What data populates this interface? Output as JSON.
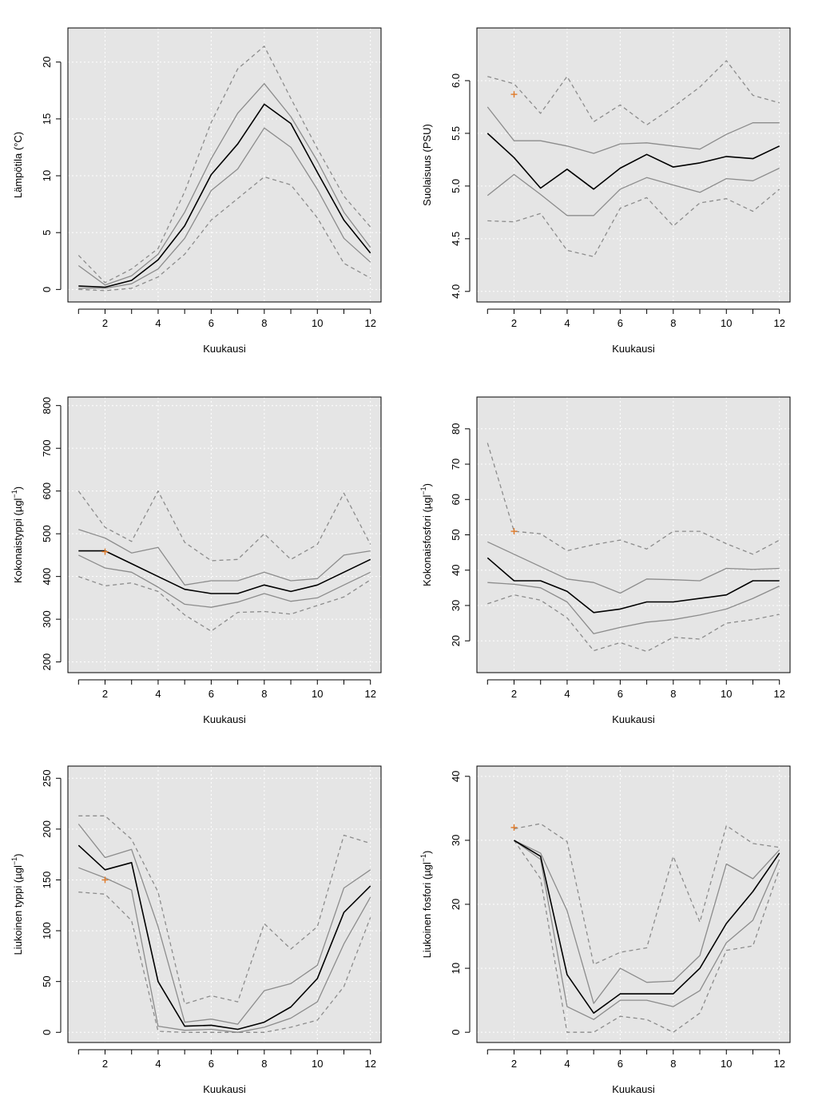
{
  "colors": {
    "panel_bg": "#e5e5e5",
    "grid": "#ffffff",
    "median": "#000000",
    "quartile": "#8c8c8c",
    "extreme": "#8c8c8c",
    "marker": "#e07b2a"
  },
  "chart_data": [
    {
      "type": "line",
      "ylabel": "Lämpötila (°C)",
      "xlabel": "Kuukausi",
      "xlim": [
        0.6,
        12.4
      ],
      "ylim": [
        -1.1,
        23.0
      ],
      "xticks": [
        2,
        4,
        6,
        8,
        10,
        12
      ],
      "yticks": [
        0,
        5,
        10,
        15,
        20
      ],
      "ytick_labels": [
        "0",
        "5",
        "10",
        "15",
        "20"
      ],
      "grid": true,
      "x": [
        1,
        2,
        3,
        4,
        5,
        6,
        7,
        8,
        9,
        10,
        11,
        12
      ],
      "series": [
        {
          "role": "median",
          "values": [
            0.3,
            0.2,
            0.8,
            2.6,
            5.6,
            10.1,
            12.8,
            16.3,
            14.6,
            10.3,
            6.1,
            3.2
          ]
        },
        {
          "role": "upper-quartile",
          "values": [
            2.1,
            0.4,
            1.2,
            3.1,
            6.8,
            11.5,
            15.5,
            18.1,
            15.2,
            11.3,
            6.8,
            3.7
          ]
        },
        {
          "role": "lower-quartile",
          "values": [
            0.1,
            0.1,
            0.5,
            1.8,
            4.5,
            8.7,
            10.6,
            14.2,
            12.5,
            8.8,
            4.5,
            2.4
          ]
        },
        {
          "role": "upper-extreme",
          "values": [
            3.0,
            0.6,
            1.8,
            3.6,
            8.6,
            14.7,
            19.4,
            21.4,
            16.8,
            12.4,
            8.2,
            5.5
          ]
        },
        {
          "role": "lower-extreme",
          "values": [
            0.0,
            -0.1,
            0.1,
            1.1,
            3.1,
            6.1,
            8.0,
            9.9,
            9.2,
            6.3,
            2.3,
            1.0
          ]
        }
      ],
      "markers": []
    },
    {
      "type": "line",
      "ylabel": "Suolaisuus (PSU)",
      "xlabel": "Kuukausi",
      "xlim": [
        0.6,
        12.4
      ],
      "ylim": [
        3.9,
        6.5
      ],
      "xticks": [
        2,
        4,
        6,
        8,
        10,
        12
      ],
      "yticks": [
        4.0,
        4.5,
        5.0,
        5.5,
        6.0
      ],
      "ytick_labels": [
        "4.0",
        "4.5",
        "5.0",
        "5.5",
        "6.0"
      ],
      "grid": true,
      "x": [
        1,
        2,
        3,
        4,
        5,
        6,
        7,
        8,
        9,
        10,
        11,
        12
      ],
      "series": [
        {
          "role": "median",
          "values": [
            5.5,
            5.27,
            4.98,
            5.16,
            4.97,
            5.17,
            5.3,
            5.18,
            5.22,
            5.28,
            5.26,
            5.38
          ]
        },
        {
          "role": "upper-quartile",
          "values": [
            5.75,
            5.43,
            5.43,
            5.38,
            5.31,
            5.4,
            5.41,
            5.38,
            5.35,
            5.49,
            5.6,
            5.6
          ]
        },
        {
          "role": "lower-quartile",
          "values": [
            4.91,
            5.11,
            4.92,
            4.72,
            4.72,
            4.97,
            5.08,
            5.01,
            4.94,
            5.07,
            5.05,
            5.17
          ]
        },
        {
          "role": "upper-extreme",
          "values": [
            6.04,
            5.97,
            5.69,
            6.04,
            5.61,
            5.77,
            5.58,
            5.75,
            5.94,
            6.19,
            5.86,
            5.79
          ]
        },
        {
          "role": "lower-extreme",
          "values": [
            4.67,
            4.66,
            4.74,
            4.39,
            4.33,
            4.79,
            4.89,
            4.62,
            4.84,
            4.88,
            4.76,
            4.97
          ]
        }
      ],
      "markers": [
        {
          "x": 2,
          "y": 5.87
        }
      ]
    },
    {
      "type": "line",
      "ylabel": "Kokonaistyppi (µgl",
      "ylabel_sup": "−1",
      "ylabel_end": ")",
      "xlabel": "Kuukausi",
      "xlim": [
        0.6,
        12.4
      ],
      "ylim": [
        175,
        820
      ],
      "xticks": [
        2,
        4,
        6,
        8,
        10,
        12
      ],
      "yticks": [
        200,
        300,
        400,
        500,
        600,
        700,
        800
      ],
      "ytick_labels": [
        "200",
        "300",
        "400",
        "500",
        "600",
        "700",
        "800"
      ],
      "grid": true,
      "x": [
        1,
        2,
        3,
        4,
        5,
        6,
        7,
        8,
        9,
        10,
        11,
        12
      ],
      "series": [
        {
          "role": "median",
          "values": [
            460,
            460,
            430,
            400,
            370,
            360,
            360,
            380,
            365,
            380,
            410,
            440
          ]
        },
        {
          "role": "upper-quartile",
          "values": [
            510,
            490,
            455,
            468,
            380,
            390,
            390,
            410,
            390,
            395,
            450,
            460
          ]
        },
        {
          "role": "lower-quartile",
          "values": [
            450,
            420,
            410,
            375,
            335,
            328,
            340,
            360,
            342,
            350,
            380,
            410
          ]
        },
        {
          "role": "upper-extreme",
          "values": [
            600,
            515,
            482,
            600,
            480,
            437,
            440,
            500,
            440,
            475,
            595,
            475
          ]
        },
        {
          "role": "lower-extreme",
          "values": [
            400,
            378,
            385,
            365,
            310,
            272,
            316,
            318,
            312,
            332,
            352,
            392
          ]
        }
      ],
      "markers": [
        {
          "x": 2,
          "y": 458
        }
      ]
    },
    {
      "type": "line",
      "ylabel": "Kokonaisfosfori (µgl",
      "ylabel_sup": "−1",
      "ylabel_end": ")",
      "xlabel": "Kuukausi",
      "xlim": [
        0.6,
        12.4
      ],
      "ylim": [
        11,
        89
      ],
      "xticks": [
        2,
        4,
        6,
        8,
        10,
        12
      ],
      "yticks": [
        20,
        30,
        40,
        50,
        60,
        70,
        80
      ],
      "ytick_labels": [
        "20",
        "30",
        "40",
        "50",
        "60",
        "70",
        "80"
      ],
      "grid": true,
      "x": [
        1,
        2,
        3,
        4,
        5,
        6,
        7,
        8,
        9,
        10,
        11,
        12
      ],
      "series": [
        {
          "role": "median",
          "values": [
            43.5,
            37.0,
            37.0,
            34.0,
            28.0,
            29.0,
            31.0,
            31.0,
            32.0,
            33.0,
            37.0,
            37.0
          ]
        },
        {
          "role": "upper-quartile",
          "values": [
            48.0,
            44.5,
            41.0,
            37.5,
            36.5,
            33.5,
            37.5,
            37.3,
            37.0,
            40.5,
            40.2,
            40.5
          ]
        },
        {
          "role": "lower-quartile",
          "values": [
            36.5,
            36.0,
            35.0,
            31.0,
            22.0,
            23.8,
            25.3,
            26.0,
            27.3,
            29.0,
            32.0,
            35.5
          ]
        },
        {
          "role": "upper-extreme",
          "values": [
            76.0,
            51.0,
            50.3,
            45.5,
            47.2,
            48.5,
            46.0,
            51.0,
            51.0,
            47.5,
            44.5,
            48.5
          ]
        },
        {
          "role": "lower-extreme",
          "values": [
            30.5,
            33.0,
            31.5,
            26.5,
            17.2,
            19.5,
            17.0,
            21.0,
            20.5,
            25.0,
            26.0,
            27.5
          ]
        }
      ],
      "markers": [
        {
          "x": 2,
          "y": 51.0
        }
      ]
    },
    {
      "type": "line",
      "ylabel": "Liukoinen typpi (µgl",
      "ylabel_sup": "−1",
      "ylabel_end": ")",
      "xlabel": "Kuukausi",
      "xlim": [
        0.6,
        12.4
      ],
      "ylim": [
        -10,
        262
      ],
      "xticks": [
        2,
        4,
        6,
        8,
        10,
        12
      ],
      "yticks": [
        0,
        50,
        100,
        150,
        200,
        250
      ],
      "ytick_labels": [
        "0",
        "50",
        "100",
        "150",
        "200",
        "250"
      ],
      "grid": true,
      "x": [
        1,
        2,
        3,
        4,
        5,
        6,
        7,
        8,
        9,
        10,
        11,
        12
      ],
      "series": [
        {
          "role": "median",
          "values": [
            184,
            160,
            167,
            50,
            6,
            7,
            3,
            10,
            25,
            53,
            118,
            144
          ]
        },
        {
          "role": "upper-quartile",
          "values": [
            205,
            172,
            180,
            104,
            10,
            13,
            8,
            41,
            48,
            66,
            142,
            160
          ]
        },
        {
          "role": "lower-quartile",
          "values": [
            162,
            152,
            140,
            6,
            2,
            3,
            0,
            5,
            14,
            30,
            87,
            133
          ]
        },
        {
          "role": "upper-extreme",
          "values": [
            213,
            213,
            190,
            138,
            28,
            36,
            30,
            107,
            82,
            104,
            194,
            186
          ]
        },
        {
          "role": "lower-extreme",
          "values": [
            138,
            136,
            110,
            1,
            0,
            0,
            0,
            0,
            5,
            12,
            45,
            113
          ]
        }
      ],
      "markers": [
        {
          "x": 2,
          "y": 150
        }
      ]
    },
    {
      "type": "line",
      "ylabel": "Liukoinen fosfori (µgl",
      "ylabel_sup": "−1",
      "ylabel_end": ")",
      "xlabel": "Kuukausi",
      "xlim": [
        0.6,
        12.4
      ],
      "ylim": [
        -1.6,
        41.6
      ],
      "xticks": [
        2,
        4,
        6,
        8,
        10,
        12
      ],
      "yticks": [
        0,
        10,
        20,
        30,
        40
      ],
      "ytick_labels": [
        "0",
        "10",
        "20",
        "30",
        "40"
      ],
      "grid": true,
      "x": [
        2,
        3,
        4,
        5,
        6,
        7,
        8,
        9,
        10,
        11,
        12
      ],
      "series": [
        {
          "role": "median",
          "values": [
            30.0,
            27.5,
            9.0,
            3.0,
            6.0,
            6.0,
            6.0,
            10.0,
            17.0,
            22.0,
            28.0
          ]
        },
        {
          "role": "upper-quartile",
          "values": [
            30.0,
            28.0,
            19.0,
            4.5,
            10.0,
            7.8,
            8.0,
            12.0,
            26.3,
            24.0,
            28.5
          ]
        },
        {
          "role": "lower-quartile",
          "values": [
            30.0,
            27.0,
            4.0,
            2.0,
            5.0,
            5.0,
            4.0,
            6.5,
            14.0,
            17.5,
            27.0
          ]
        },
        {
          "role": "upper-extreme",
          "values": [
            31.8,
            32.6,
            29.8,
            10.6,
            12.5,
            13.2,
            27.5,
            17.2,
            32.3,
            29.5,
            28.9
          ]
        },
        {
          "role": "lower-extreme",
          "values": [
            30.0,
            24.0,
            0.0,
            0.0,
            2.5,
            2.0,
            0.0,
            3.0,
            12.8,
            13.5,
            25.5
          ]
        }
      ],
      "markers": [
        {
          "x": 2,
          "y": 32.0
        }
      ]
    }
  ]
}
